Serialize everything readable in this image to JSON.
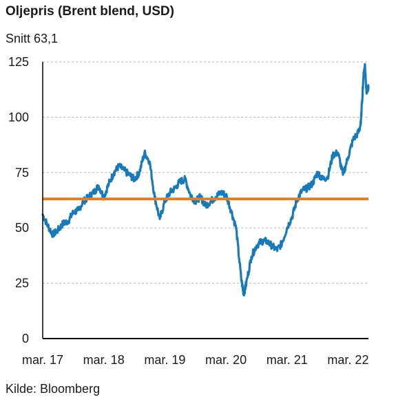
{
  "title": "Oljepris (Brent blend, USD)",
  "subtitle": "Snitt 63,1",
  "source": "Kilde: Bloomberg",
  "colors": {
    "series": "#1a7ab8",
    "average": "#e07f2a",
    "grid": "#b5b5b5",
    "axis": "#000000"
  },
  "chart_data": {
    "type": "line",
    "title": "Oljepris (Brent blend, USD)",
    "subtitle": "Snitt 63,1",
    "xlabel": "",
    "ylabel": "",
    "ylim": [
      0,
      125
    ],
    "yticks": [
      0,
      25,
      50,
      75,
      100,
      125
    ],
    "xlim": [
      0,
      61
    ],
    "xticks": [
      {
        "x": 0,
        "label": "mar. 17"
      },
      {
        "x": 12,
        "label": "mar. 18"
      },
      {
        "x": 24,
        "label": "mar. 19"
      },
      {
        "x": 36,
        "label": "mar. 20"
      },
      {
        "x": 48,
        "label": "mar. 21"
      },
      {
        "x": 60,
        "label": "mar. 22"
      }
    ],
    "grid": "horizontal dashed",
    "series": [
      {
        "values": [
          [
            0,
            56
          ],
          [
            1,
            51
          ],
          [
            2,
            47
          ],
          [
            3,
            49
          ],
          [
            4,
            52
          ],
          [
            5,
            53
          ],
          [
            6,
            57
          ],
          [
            7,
            58
          ],
          [
            8,
            62
          ],
          [
            9,
            64
          ],
          [
            10,
            66
          ],
          [
            11,
            69
          ],
          [
            12,
            64
          ],
          [
            13,
            70
          ],
          [
            14,
            75
          ],
          [
            15,
            78
          ],
          [
            16,
            76
          ],
          [
            17,
            74
          ],
          [
            18,
            72
          ],
          [
            19,
            75
          ],
          [
            20,
            84
          ],
          [
            21,
            80
          ],
          [
            22,
            64
          ],
          [
            23,
            54
          ],
          [
            24,
            62
          ],
          [
            25,
            66
          ],
          [
            26,
            68
          ],
          [
            27,
            71
          ],
          [
            28,
            72
          ],
          [
            29,
            65
          ],
          [
            30,
            62
          ],
          [
            31,
            64
          ],
          [
            32,
            60
          ],
          [
            33,
            62
          ],
          [
            34,
            64
          ],
          [
            35,
            66
          ],
          [
            36,
            65
          ],
          [
            37,
            58
          ],
          [
            38,
            50
          ],
          [
            39,
            27
          ],
          [
            39.5,
            20
          ],
          [
            40,
            25
          ],
          [
            41,
            37
          ],
          [
            42,
            42
          ],
          [
            43,
            44
          ],
          [
            44,
            44
          ],
          [
            45,
            42
          ],
          [
            46,
            40
          ],
          [
            47,
            43
          ],
          [
            48,
            50
          ],
          [
            49,
            55
          ],
          [
            50,
            63
          ],
          [
            51,
            67
          ],
          [
            52,
            68
          ],
          [
            53,
            70
          ],
          [
            54,
            75
          ],
          [
            55,
            72
          ],
          [
            56,
            73
          ],
          [
            57,
            83
          ],
          [
            58,
            84
          ],
          [
            59,
            74
          ],
          [
            60,
            82
          ],
          [
            61,
            90
          ],
          [
            62,
            93
          ],
          [
            62.5,
            97
          ],
          [
            63,
            118
          ],
          [
            63.3,
            124
          ],
          [
            63.6,
            112
          ],
          [
            64,
            113
          ]
        ]
      }
    ],
    "average": 63.1
  }
}
